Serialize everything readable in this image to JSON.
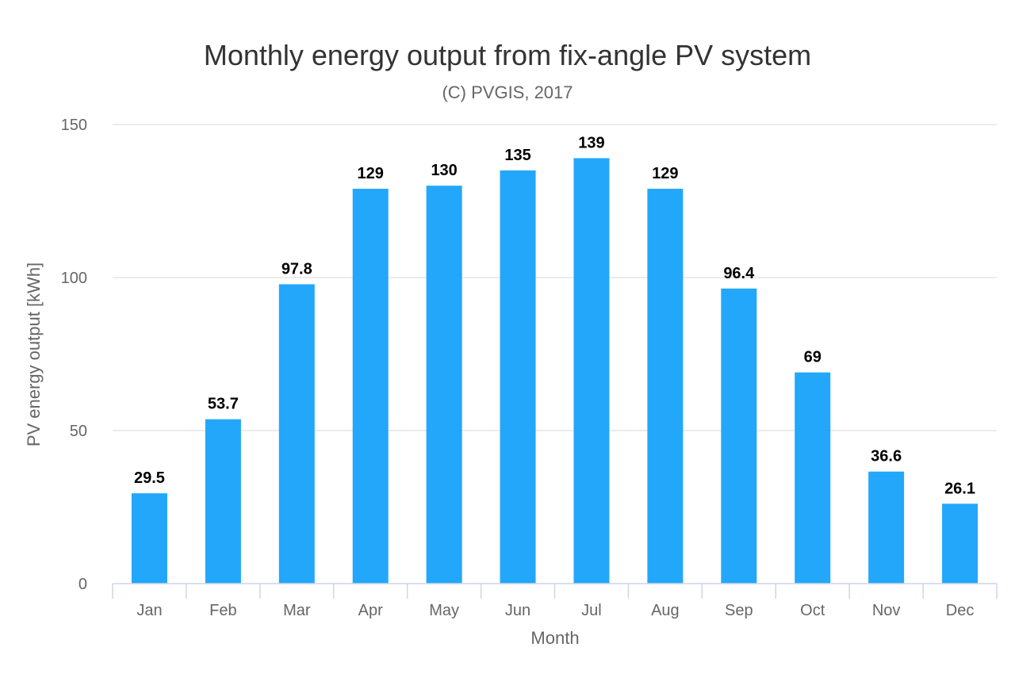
{
  "chart_data": {
    "type": "bar",
    "title": "Monthly energy output from fix-angle PV system",
    "subtitle": "(C) PVGIS, 2017",
    "xlabel": "Month",
    "ylabel": "PV energy output [kWh]",
    "categories": [
      "Jan",
      "Feb",
      "Mar",
      "Apr",
      "May",
      "Jun",
      "Jul",
      "Aug",
      "Sep",
      "Oct",
      "Nov",
      "Dec"
    ],
    "values": [
      29.5,
      53.7,
      97.8,
      129,
      130,
      135,
      139,
      129,
      96.4,
      69,
      36.6,
      26.1
    ],
    "value_labels": [
      "29.5",
      "53.7",
      "97.8",
      "129",
      "130",
      "135",
      "139",
      "129",
      "96.4",
      "69",
      "36.6",
      "26.1"
    ],
    "ylim": [
      0,
      150
    ],
    "yticks": [
      0,
      50,
      100,
      150
    ],
    "grid": true,
    "legend": "none",
    "bar_color": "#22a7fa"
  }
}
